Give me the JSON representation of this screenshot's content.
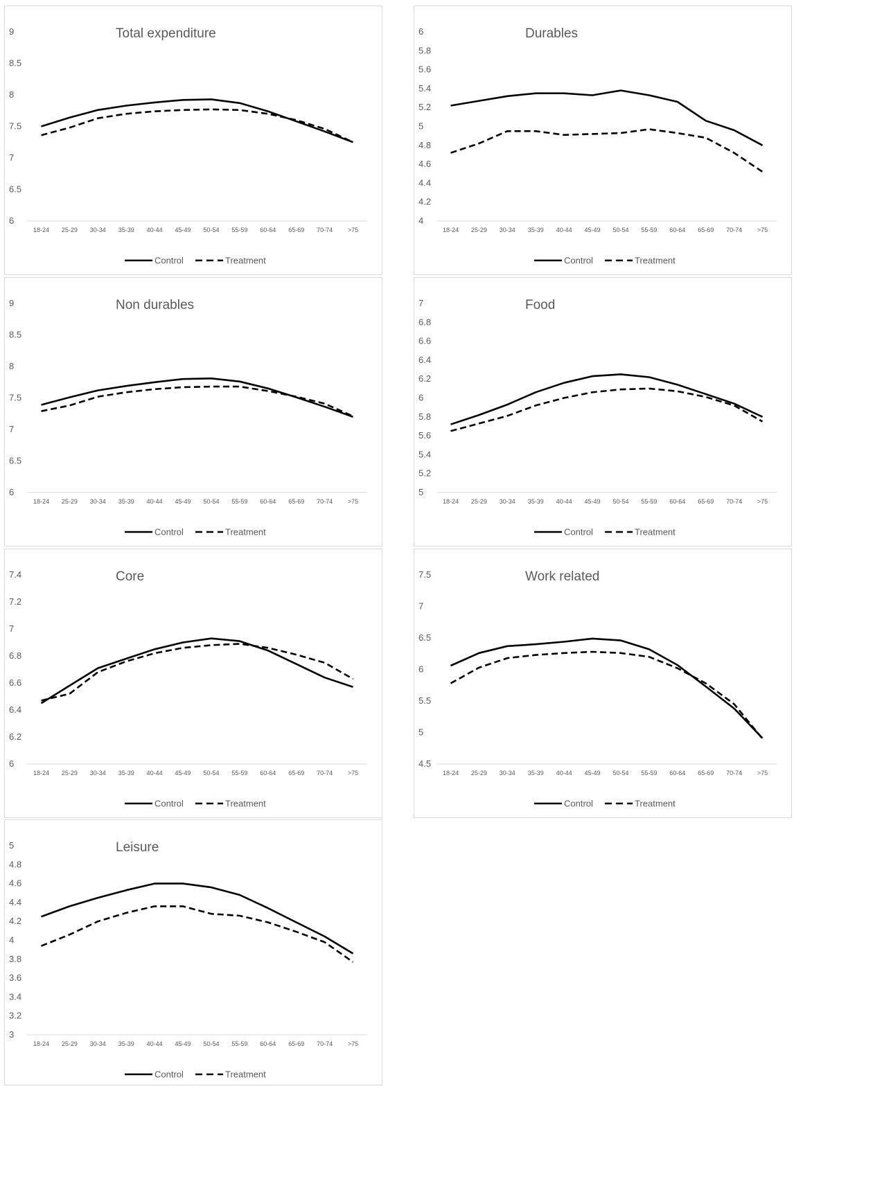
{
  "chart_data": [
    {
      "type": "line",
      "title": "Total expenditure",
      "categories": [
        "18-24",
        "25-29",
        "30-34",
        "35-39",
        "40-44",
        "45-49",
        "50-54",
        "55-59",
        "60-64",
        "65-69",
        "70-74",
        ">75"
      ],
      "yticks": [
        "6",
        "6.5",
        "7",
        "7.5",
        "8",
        "8.5",
        "9"
      ],
      "ylim": [
        6,
        9
      ],
      "series": [
        {
          "name": "Control",
          "style": "solid",
          "values": [
            7.5,
            7.64,
            7.76,
            7.83,
            7.88,
            7.92,
            7.93,
            7.87,
            7.74,
            7.58,
            7.42,
            7.25
          ]
        },
        {
          "name": "Treatment",
          "style": "dashed",
          "values": [
            7.36,
            7.48,
            7.63,
            7.7,
            7.74,
            7.76,
            7.77,
            7.76,
            7.7,
            7.6,
            7.46,
            7.25
          ]
        }
      ],
      "legend": "bottom"
    },
    {
      "type": "line",
      "title": "Durables",
      "categories": [
        "18-24",
        "25-29",
        "30-34",
        "35-39",
        "40-44",
        "45-49",
        "50-54",
        "55-59",
        "60-64",
        "65-69",
        "70-74",
        ">75"
      ],
      "yticks": [
        "4",
        "4.2",
        "4.4",
        "4.6",
        "4.8",
        "5",
        "5.2",
        "5.4",
        "5.6",
        "5.8",
        "6"
      ],
      "ylim": [
        4,
        6
      ],
      "series": [
        {
          "name": "Control",
          "style": "solid",
          "values": [
            5.22,
            5.27,
            5.32,
            5.35,
            5.35,
            5.33,
            5.38,
            5.33,
            5.26,
            5.06,
            4.96,
            4.8
          ]
        },
        {
          "name": "Treatment",
          "style": "dashed",
          "values": [
            4.72,
            4.82,
            4.95,
            4.95,
            4.91,
            4.92,
            4.93,
            4.97,
            4.93,
            4.88,
            4.72,
            4.52
          ]
        }
      ],
      "legend": "bottom"
    },
    {
      "type": "line",
      "title": "Non durables",
      "categories": [
        "18-24",
        "25-29",
        "30-34",
        "35-39",
        "40-44",
        "45-49",
        "50-54",
        "55-59",
        "60-64",
        "65-69",
        "70-74",
        ">75"
      ],
      "yticks": [
        "6",
        "6.5",
        "7",
        "7.5",
        "8",
        "8.5",
        "9"
      ],
      "ylim": [
        6,
        9
      ],
      "series": [
        {
          "name": "Control",
          "style": "solid",
          "values": [
            7.39,
            7.51,
            7.62,
            7.69,
            7.75,
            7.8,
            7.81,
            7.76,
            7.65,
            7.51,
            7.36,
            7.2
          ]
        },
        {
          "name": "Treatment",
          "style": "dashed",
          "values": [
            7.29,
            7.38,
            7.52,
            7.59,
            7.64,
            7.67,
            7.68,
            7.68,
            7.61,
            7.52,
            7.41,
            7.21
          ]
        }
      ],
      "legend": "bottom"
    },
    {
      "type": "line",
      "title": "Food",
      "categories": [
        "18-24",
        "25-29",
        "30-34",
        "35-39",
        "40-44",
        "45-49",
        "50-54",
        "55-59",
        "60-64",
        "65-69",
        "70-74",
        ">75"
      ],
      "yticks": [
        "5",
        "5.2",
        "5.4",
        "5.6",
        "5.8",
        "6",
        "6.2",
        "6.4",
        "6.6",
        "6.8",
        "7"
      ],
      "ylim": [
        5,
        7
      ],
      "series": [
        {
          "name": "Control",
          "style": "solid",
          "values": [
            5.72,
            5.82,
            5.93,
            6.06,
            6.16,
            6.23,
            6.25,
            6.22,
            6.14,
            6.04,
            5.94,
            5.8
          ]
        },
        {
          "name": "Treatment",
          "style": "dashed",
          "values": [
            5.65,
            5.73,
            5.81,
            5.92,
            6.0,
            6.06,
            6.09,
            6.1,
            6.07,
            6.01,
            5.92,
            5.75
          ]
        }
      ],
      "legend": "bottom"
    },
    {
      "type": "line",
      "title": "Core",
      "categories": [
        "18-24",
        "25-29",
        "30-34",
        "35-39",
        "40-44",
        "45-49",
        "50-54",
        "55-59",
        "60-64",
        "65-69",
        "70-74",
        ">75"
      ],
      "yticks": [
        "6",
        "6.2",
        "6.4",
        "6.6",
        "6.8",
        "7",
        "7.2",
        "7.4"
      ],
      "ylim": [
        6,
        7.4
      ],
      "series": [
        {
          "name": "Control",
          "style": "solid",
          "values": [
            6.45,
            6.58,
            6.71,
            6.78,
            6.85,
            6.9,
            6.93,
            6.91,
            6.84,
            6.74,
            6.64,
            6.57
          ]
        },
        {
          "name": "Treatment",
          "style": "dashed",
          "values": [
            6.47,
            6.52,
            6.68,
            6.76,
            6.82,
            6.86,
            6.88,
            6.89,
            6.86,
            6.81,
            6.75,
            6.63
          ]
        }
      ],
      "legend": "bottom"
    },
    {
      "type": "line",
      "title": "Work related",
      "categories": [
        "18-24",
        "25-29",
        "30-34",
        "35-39",
        "40-44",
        "45-49",
        "50-54",
        "55-59",
        "60-64",
        "65-69",
        "70-74",
        ">75"
      ],
      "yticks": [
        "4.5",
        "5",
        "5.5",
        "6",
        "6.5",
        "7",
        "7.5"
      ],
      "ylim": [
        4.5,
        7.5
      ],
      "series": [
        {
          "name": "Control",
          "style": "solid",
          "values": [
            6.06,
            6.26,
            6.37,
            6.4,
            6.44,
            6.49,
            6.46,
            6.32,
            6.07,
            5.73,
            5.38,
            4.91
          ]
        },
        {
          "name": "Treatment",
          "style": "dashed",
          "values": [
            5.78,
            6.03,
            6.18,
            6.23,
            6.26,
            6.28,
            6.26,
            6.2,
            6.02,
            5.78,
            5.45,
            4.9
          ]
        }
      ],
      "legend": "bottom"
    },
    {
      "type": "line",
      "title": "Leisure",
      "categories": [
        "18-24",
        "25-29",
        "30-34",
        "35-39",
        "40-44",
        "45-49",
        "50-54",
        "55-59",
        "60-64",
        "65-69",
        "70-74",
        ">75"
      ],
      "yticks": [
        "3",
        "3.2",
        "3.4",
        "3.6",
        "3.8",
        "4",
        "4.2",
        "4.4",
        "4.6",
        "4.8",
        "5"
      ],
      "ylim": [
        3,
        5
      ],
      "series": [
        {
          "name": "Control",
          "style": "solid",
          "values": [
            4.25,
            4.36,
            4.45,
            4.53,
            4.6,
            4.6,
            4.56,
            4.48,
            4.34,
            4.19,
            4.04,
            3.86
          ]
        },
        {
          "name": "Treatment",
          "style": "dashed",
          "values": [
            3.94,
            4.06,
            4.2,
            4.29,
            4.36,
            4.36,
            4.28,
            4.26,
            4.19,
            4.09,
            3.98,
            3.77
          ]
        }
      ],
      "legend": "bottom"
    }
  ]
}
